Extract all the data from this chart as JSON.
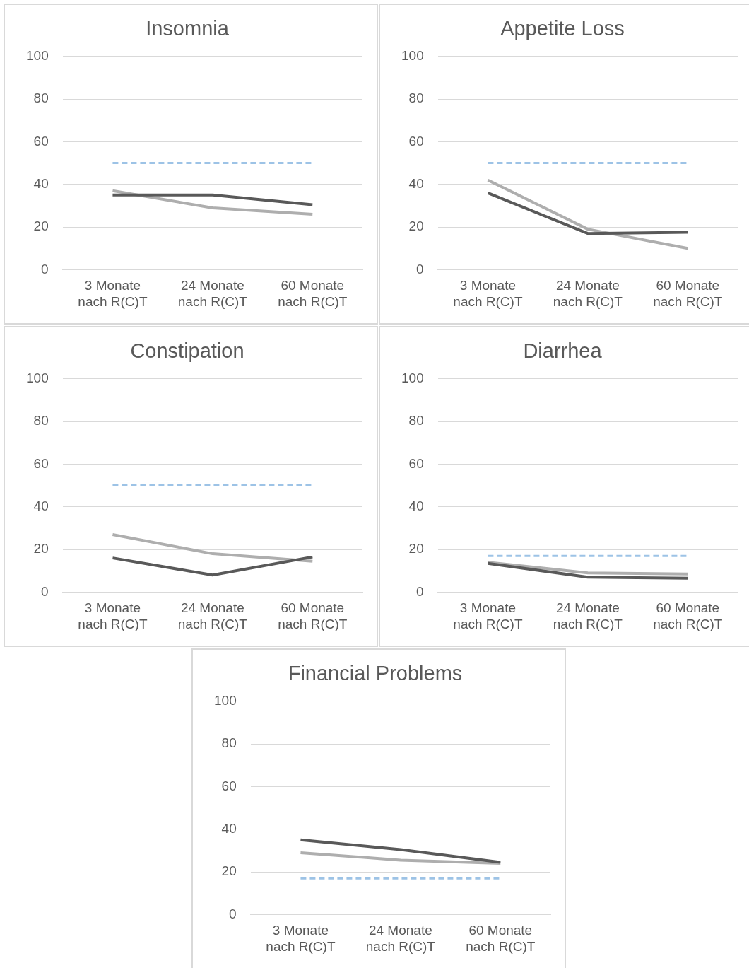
{
  "chart_data": [
    {
      "type": "line",
      "title": "Insomnia",
      "categories": [
        "3 Monate nach R(C)T",
        "24 Monate nach R(C)T",
        "60 Monate nach R(C)T"
      ],
      "ylim": [
        0,
        100
      ],
      "yticks": [
        0,
        20,
        40,
        60,
        80,
        100
      ],
      "grid": "y",
      "legend": false,
      "marker": "none",
      "series": [
        {
          "color": "#595959",
          "values": [
            35,
            35,
            30.5
          ]
        },
        {
          "color": "#aeaeae",
          "values": [
            37,
            29,
            26
          ]
        },
        {
          "color": "#9dc3e6",
          "line_style": "dashed",
          "values": [
            50,
            50,
            50
          ]
        }
      ]
    },
    {
      "type": "line",
      "title": "Appetite Loss",
      "categories": [
        "3 Monate nach R(C)T",
        "24 Monate nach R(C)T",
        "60 Monate nach R(C)T"
      ],
      "ylim": [
        0,
        100
      ],
      "yticks": [
        0,
        20,
        40,
        60,
        80,
        100
      ],
      "grid": "y",
      "legend": false,
      "marker": "none",
      "series": [
        {
          "color": "#595959",
          "values": [
            36,
            17,
            17.5
          ]
        },
        {
          "color": "#aeaeae",
          "values": [
            42,
            19,
            10
          ]
        },
        {
          "color": "#9dc3e6",
          "line_style": "dashed",
          "values": [
            50,
            50,
            50
          ]
        }
      ]
    },
    {
      "type": "line",
      "title": "Constipation",
      "categories": [
        "3 Monate nach R(C)T",
        "24 Monate nach R(C)T",
        "60 Monate nach R(C)T"
      ],
      "ylim": [
        0,
        100
      ],
      "yticks": [
        0,
        20,
        40,
        60,
        80,
        100
      ],
      "grid": "y",
      "legend": false,
      "marker": "none",
      "series": [
        {
          "color": "#595959",
          "values": [
            16,
            8,
            16.5
          ]
        },
        {
          "color": "#aeaeae",
          "values": [
            27,
            18,
            14.5
          ]
        },
        {
          "color": "#9dc3e6",
          "line_style": "dashed",
          "values": [
            50,
            50,
            50
          ]
        }
      ]
    },
    {
      "type": "line",
      "title": "Diarrhea",
      "categories": [
        "3 Monate nach R(C)T",
        "24 Monate nach R(C)T",
        "60 Monate nach R(C)T"
      ],
      "ylim": [
        0,
        100
      ],
      "yticks": [
        0,
        20,
        40,
        60,
        80,
        100
      ],
      "grid": "y",
      "legend": false,
      "marker": "none",
      "series": [
        {
          "color": "#595959",
          "values": [
            13.5,
            7,
            6.5
          ]
        },
        {
          "color": "#aeaeae",
          "values": [
            14,
            9,
            8.5
          ]
        },
        {
          "color": "#9dc3e6",
          "line_style": "dashed",
          "values": [
            17,
            17,
            17
          ]
        }
      ]
    },
    {
      "type": "line",
      "title": "Financial Problems",
      "categories": [
        "3 Monate nach R(C)T",
        "24 Monate nach R(C)T",
        "60 Monate nach R(C)T"
      ],
      "ylim": [
        0,
        100
      ],
      "yticks": [
        0,
        20,
        40,
        60,
        80,
        100
      ],
      "grid": "y",
      "legend": false,
      "marker": "none",
      "series": [
        {
          "color": "#595959",
          "values": [
            35,
            30.5,
            24.5
          ]
        },
        {
          "color": "#aeaeae",
          "values": [
            29,
            25.5,
            24
          ]
        },
        {
          "color": "#9dc3e6",
          "line_style": "dashed",
          "values": [
            17,
            17,
            17
          ]
        }
      ]
    }
  ]
}
